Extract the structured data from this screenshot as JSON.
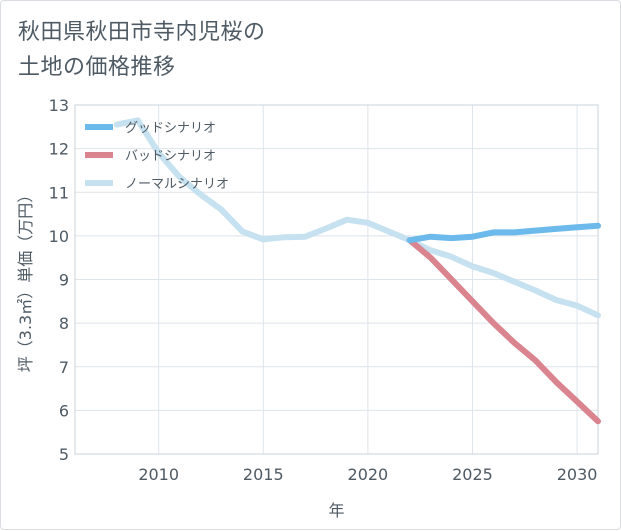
{
  "title_lines": [
    "秋田県秋田市寺内児桜の",
    "土地の価格推移"
  ],
  "chart_data": {
    "type": "line",
    "title": "秋田県秋田市寺内児桜の土地の価格推移",
    "xlabel": "年",
    "ylabel": "坪（3.3㎡）単価（万円）",
    "xlim": [
      2006,
      2031
    ],
    "ylim": [
      5,
      13
    ],
    "xticks": [
      2010,
      2015,
      2020,
      2025,
      2030
    ],
    "yticks": [
      5,
      6,
      7,
      8,
      9,
      10,
      11,
      12,
      13
    ],
    "grid": true,
    "legend_position": "top-left",
    "series": [
      {
        "name": "グッドシナリオ",
        "color": "#6cb9ec",
        "x": [
          2022,
          2023,
          2024,
          2025,
          2026,
          2027,
          2028,
          2029,
          2030,
          2031
        ],
        "y": [
          9.9,
          9.98,
          9.95,
          9.98,
          10.08,
          10.08,
          10.12,
          10.16,
          10.2,
          10.23
        ]
      },
      {
        "name": "バッドシナリオ",
        "color": "#d9848e",
        "x": [
          2022,
          2023,
          2024,
          2025,
          2026,
          2027,
          2028,
          2029,
          2030,
          2031
        ],
        "y": [
          9.9,
          9.5,
          9.0,
          8.5,
          8.0,
          7.55,
          7.15,
          6.65,
          6.2,
          5.75
        ]
      },
      {
        "name": "ノーマルシナリオ",
        "color": "#c6e1ef",
        "x": [
          2008,
          2009,
          2010,
          2011,
          2012,
          2013,
          2014,
          2015,
          2016,
          2017,
          2018,
          2019,
          2020,
          2021,
          2022,
          2023,
          2024,
          2025,
          2026,
          2027,
          2028,
          2029,
          2030,
          2031
        ],
        "y": [
          12.55,
          12.65,
          11.9,
          11.35,
          10.95,
          10.6,
          10.1,
          9.92,
          9.97,
          9.98,
          10.17,
          10.37,
          10.3,
          10.1,
          9.9,
          9.67,
          9.52,
          9.3,
          9.15,
          8.95,
          8.75,
          8.53,
          8.4,
          8.18
        ]
      }
    ]
  }
}
